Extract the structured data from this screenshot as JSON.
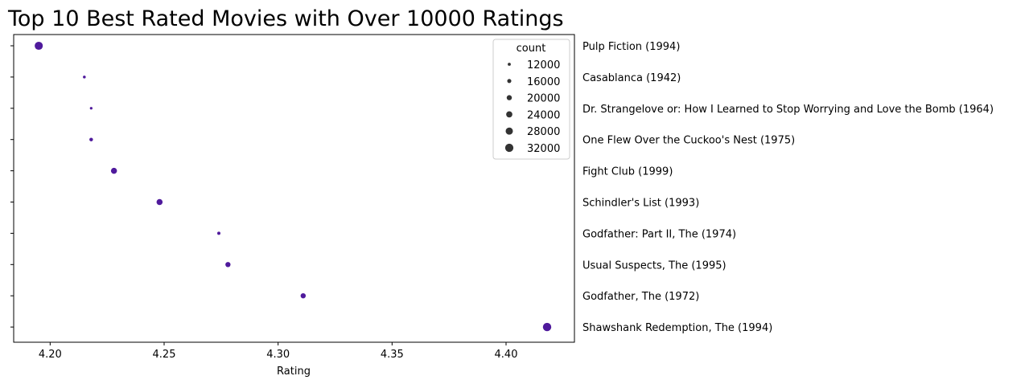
{
  "chart_data": {
    "type": "scatter",
    "title": "Top 10 Best Rated Movies with Over 10000 Ratings",
    "xlabel": "Rating",
    "ylabel": "",
    "xlim": [
      4.184,
      4.43
    ],
    "xticks": [
      "4.20",
      "4.25",
      "4.30",
      "4.35",
      "4.40"
    ],
    "marker_color": "#4f1a9c",
    "legend": {
      "title": "count",
      "position": "top-right",
      "entries": [
        {
          "label": "12000",
          "size": 12000
        },
        {
          "label": "16000",
          "size": 16000
        },
        {
          "label": "20000",
          "size": 20000
        },
        {
          "label": "24000",
          "size": 24000
        },
        {
          "label": "28000",
          "size": 28000
        },
        {
          "label": "32000",
          "size": 32000
        }
      ]
    },
    "points": [
      {
        "movie": "Pulp Fiction (1994)",
        "rating": 4.195,
        "count": 31500
      },
      {
        "movie": "Casablanca (1942)",
        "rating": 4.215,
        "count": 11000
      },
      {
        "movie": "Dr. Strangelove or: How I Learned to Stop Worrying and Love the Bomb (1964)",
        "rating": 4.218,
        "count": 10200
      },
      {
        "movie": "One Flew Over the Cuckoo's Nest (1975)",
        "rating": 4.218,
        "count": 14000
      },
      {
        "movie": "Fight Club (1999)",
        "rating": 4.228,
        "count": 23500
      },
      {
        "movie": "Schindler's List (1993)",
        "rating": 4.248,
        "count": 23500
      },
      {
        "movie": "Godfather: Part II, The (1974)",
        "rating": 4.274,
        "count": 12500
      },
      {
        "movie": "Usual Suspects, The (1995)",
        "rating": 4.278,
        "count": 20000
      },
      {
        "movie": "Godfather, The (1972)",
        "rating": 4.311,
        "count": 20000
      },
      {
        "movie": "Shawshank Redemption, The (1994)",
        "rating": 4.418,
        "count": 32500
      }
    ]
  }
}
